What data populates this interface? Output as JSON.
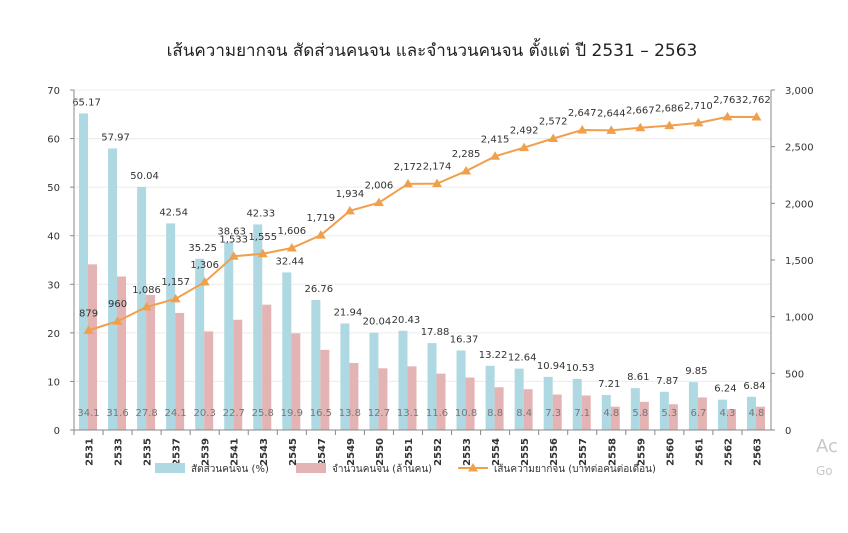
{
  "chart_data": {
    "type": "bar+line",
    "title": "เส้นความยากจน สัดส่วนคนจน และจำนวนคนจน ตั้งแต่ ปี 2531 – 2563",
    "categories": [
      "2531",
      "2533",
      "2535",
      "2537",
      "2539",
      "2541",
      "2543",
      "2545",
      "2547",
      "2549",
      "2550",
      "2551",
      "2552",
      "2553",
      "2554",
      "2555",
      "2556",
      "2557",
      "2558",
      "2559",
      "2560",
      "2561",
      "2562",
      "2563"
    ],
    "series": [
      {
        "name": "สัดส่วนคนจน (%)",
        "type": "bar",
        "axis": "left",
        "color": "#aed8e2",
        "values": [
          65.17,
          57.97,
          50.04,
          42.54,
          35.25,
          38.63,
          42.33,
          32.44,
          26.76,
          21.94,
          20.04,
          20.43,
          17.88,
          16.37,
          13.22,
          12.64,
          10.94,
          10.53,
          7.21,
          8.61,
          7.87,
          9.85,
          6.24,
          6.84
        ],
        "labels": [
          "65.17",
          "57.97",
          "50.04",
          "42.54",
          "35.25",
          "38.63",
          "42.33",
          "32.44",
          "26.76",
          "21.94",
          "20.04",
          "20.43",
          "17.88",
          "16.37",
          "13.22",
          "12.64",
          "10.94",
          "10.53",
          "7.21",
          "8.61",
          "7.87",
          "9.85",
          "6.24",
          "6.84"
        ]
      },
      {
        "name": "จำนวนคนจน (ล้านคน)",
        "type": "bar",
        "axis": "left",
        "color": "#e4b3b3",
        "values": [
          34.1,
          31.6,
          27.8,
          24.1,
          20.3,
          22.7,
          25.8,
          19.9,
          16.5,
          13.8,
          12.7,
          13.1,
          11.6,
          10.8,
          8.8,
          8.4,
          7.3,
          7.1,
          4.8,
          5.8,
          5.3,
          6.7,
          4.3,
          4.8
        ],
        "labels": [
          "34.1",
          "31.6",
          "27.8",
          "24.1",
          "20.3",
          "22.7",
          "25.8",
          "19.9",
          "16.5",
          "13.8",
          "12.7",
          "13.1",
          "11.6",
          "10.8",
          "8.8",
          "8.4",
          "7.3",
          "7.1",
          "4.8",
          "5.8",
          "5.3",
          "6.7",
          "4.3",
          "4.8"
        ]
      },
      {
        "name": "เส้นความยากจน (บาทต่อคนต่อเดือน)",
        "type": "line",
        "axis": "right",
        "color": "#f0a04b",
        "marker": "triangle",
        "values": [
          879,
          960,
          1086,
          1157,
          1306,
          1533,
          1555,
          1606,
          1719,
          1934,
          2006,
          2172,
          2174,
          2285,
          2415,
          2492,
          2572,
          2647,
          2644,
          2667,
          2686,
          2710,
          2763,
          2762
        ],
        "labels": [
          "879",
          "960",
          "1,086",
          "1,157",
          "1,306",
          "1,533",
          "1,555",
          "1,606",
          "1,719",
          "1,934",
          "2,006",
          "2,172",
          "2,174",
          "2,285",
          "2,415",
          "2,492",
          "2,572",
          "2,647",
          "2,644",
          "2,667",
          "2,686",
          "2,710",
          "2,763",
          "2,762"
        ]
      }
    ],
    "ylim_left": [
      0,
      70
    ],
    "yticks_left": [
      "0",
      "10",
      "20",
      "30",
      "40",
      "50",
      "60",
      "70"
    ],
    "ylim_right": [
      0,
      3000
    ],
    "yticks_right": [
      "0",
      "500",
      "1,000",
      "1,500",
      "2,000",
      "2,500",
      "3,000"
    ],
    "grid": true,
    "legend": "bottom"
  },
  "watermark": {
    "line1": "Ac",
    "line2": "Go"
  }
}
